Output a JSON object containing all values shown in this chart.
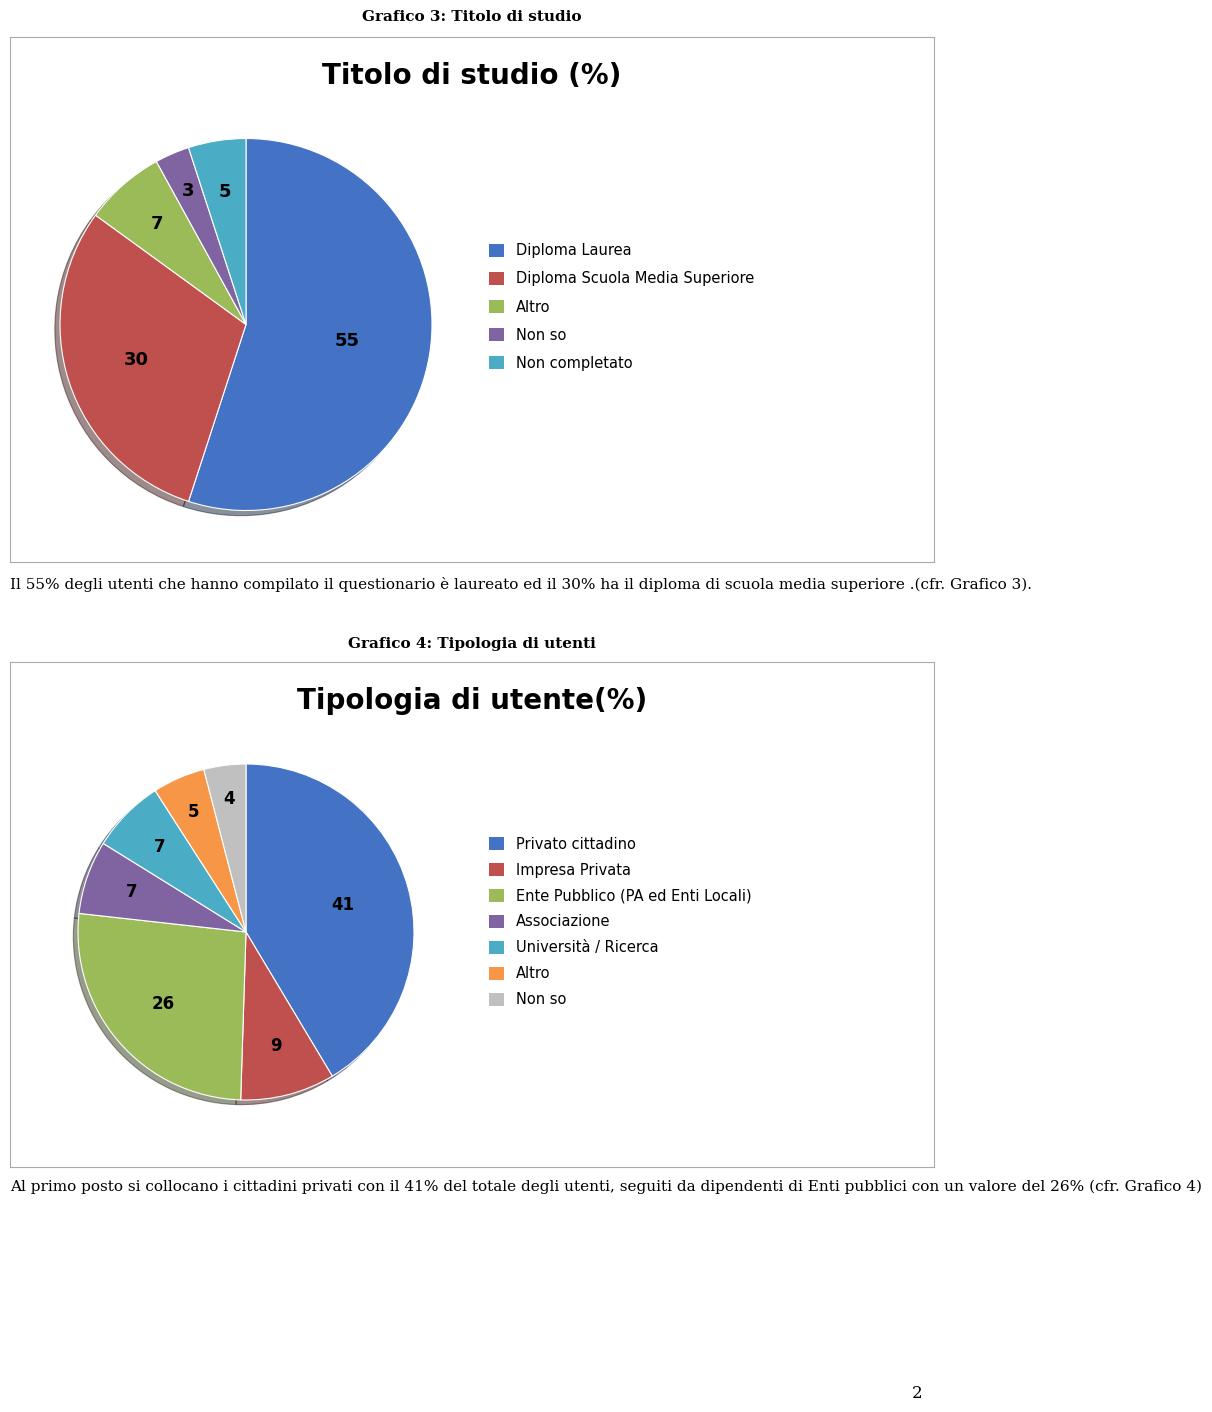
{
  "chart1_title_above": "Grafico 3: Titolo di studio",
  "chart1_title": "Titolo di studio (%)",
  "chart1_values": [
    55,
    30,
    7,
    3,
    5
  ],
  "chart1_labels": [
    "55",
    "30",
    "7",
    "3",
    "5"
  ],
  "chart1_legend": [
    "Diploma Laurea",
    "Diploma Scuola Media Superiore",
    "Altro",
    "Non so",
    "Non completato"
  ],
  "chart1_colors": [
    "#4472C4",
    "#C0504D",
    "#9BBB59",
    "#8064A2",
    "#4BACC6"
  ],
  "chart1_shadow_colors": [
    "#1a3a6b",
    "#7a2020",
    "#5a7020",
    "#3d2060",
    "#1a6070"
  ],
  "chart1_startangle": 90,
  "chart2_title_above": "Grafico 4: Tipologia di utenti",
  "chart2_title": "Tipologia di utente(%)",
  "chart2_values": [
    41,
    9,
    26,
    7,
    7,
    5,
    4
  ],
  "chart2_labels": [
    "41",
    "9",
    "26",
    "7",
    "7",
    "5",
    "4"
  ],
  "chart2_legend": [
    "Privato cittadino",
    "Impresa Privata",
    "Ente Pubblico (PA ed Enti Locali)",
    "Associazione",
    "Università / Ricerca",
    "Altro",
    "Non so"
  ],
  "chart2_colors": [
    "#4472C4",
    "#C0504D",
    "#9BBB59",
    "#8064A2",
    "#4BACC6",
    "#F79646",
    "#C0C0C0"
  ],
  "chart2_startangle": 90,
  "text_between": "Il 55% degli utenti che hanno compilato il questionario è laureato ed il 30% ha il diploma di scuola media superiore .(cfr. Grafico 3).",
  "text_below": "Al primo posto si collocano i cittadini privati con il 41% del totale degli utenti, seguiti da dipendenti di Enti pubblici con un valore del 26% (cfr. Grafico 4)",
  "page_number": "2",
  "bg_color": "#FFFFFF",
  "box_edge_color": "#AAAAAA",
  "label_fontsize": 12,
  "label1_fontsize": 13,
  "legend_fontsize": 10.5,
  "chart_title_fontsize": 20,
  "above_title_fontsize": 11,
  "body_fontsize": 11
}
